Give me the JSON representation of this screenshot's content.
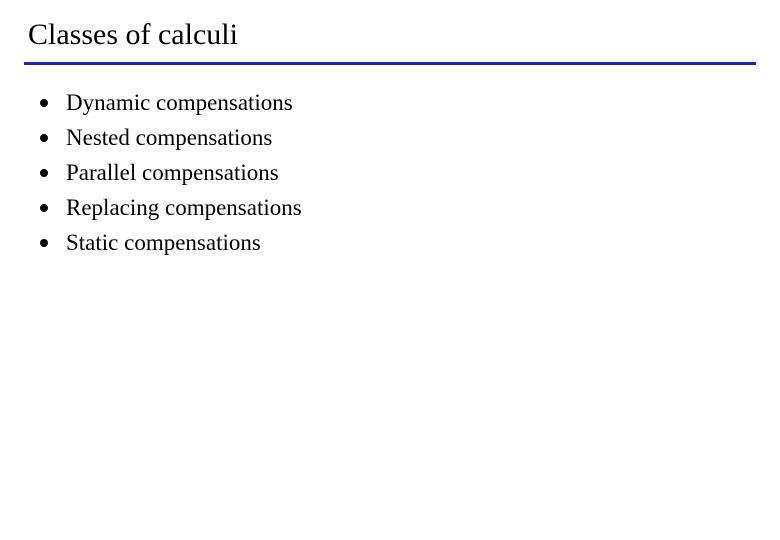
{
  "slide": {
    "title": "Classes of calculi",
    "divider_color": "#2020c0",
    "divider_width": 3,
    "background_color": "#ffffff",
    "text_color": "#000000",
    "title_fontsize": 30,
    "item_fontsize": 23,
    "bullet_color": "#000000",
    "bullet_size": 8,
    "items": [
      {
        "label": "Dynamic compensations"
      },
      {
        "label": "Nested compensations"
      },
      {
        "label": "Parallel compensations"
      },
      {
        "label": "Replacing compensations"
      },
      {
        "label": "Static compensations"
      }
    ]
  }
}
